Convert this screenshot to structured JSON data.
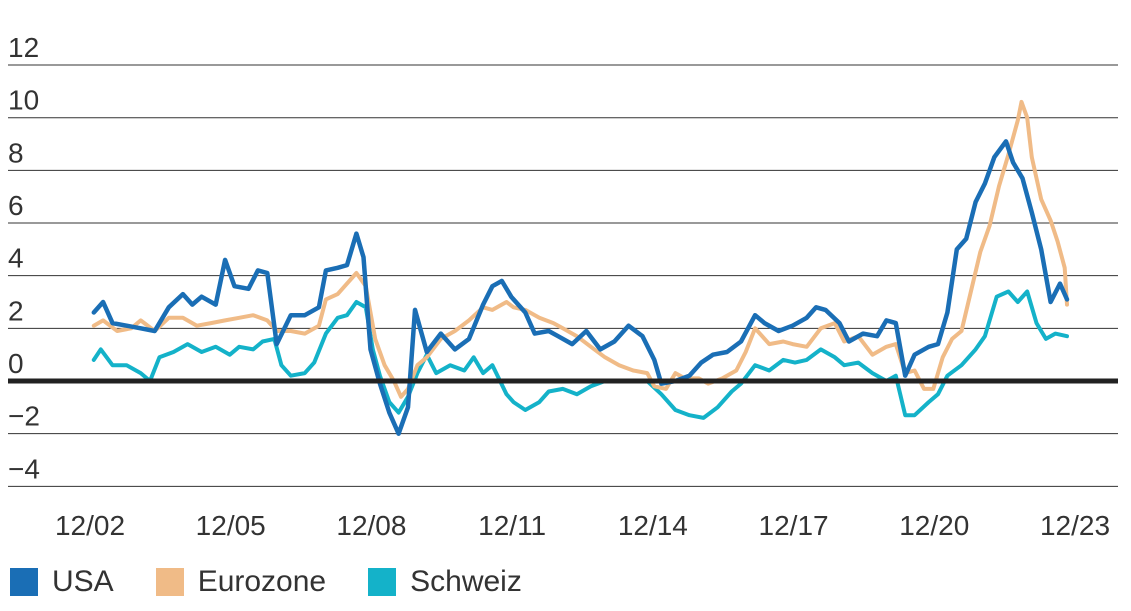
{
  "chart_data": {
    "type": "line",
    "title": "",
    "xlabel": "",
    "ylabel": "",
    "ylim": [
      -5,
      12
    ],
    "yticks": [
      12,
      10,
      8,
      6,
      4,
      2,
      0,
      -2,
      -4
    ],
    "ytick_labels": [
      "12",
      "10",
      "8",
      "6",
      "4",
      "2",
      "0",
      "−2",
      "−4"
    ],
    "xlim": [
      2002.9,
      2023.9
    ],
    "xticks": [
      2002.92,
      2005.92,
      2008.92,
      2011.92,
      2014.92,
      2017.92,
      2020.92,
      2023.92
    ],
    "xtick_labels": [
      "12/02",
      "12/05",
      "12/08",
      "12/11",
      "12/14",
      "12/17",
      "12/20",
      "12/23"
    ],
    "zero_line": true,
    "grid": "horizontal",
    "legend_position": "bottom-left",
    "series": [
      {
        "name": "USA",
        "color": "#1a6eb5",
        "points": [
          [
            2003.0,
            2.6
          ],
          [
            2003.2,
            3.0
          ],
          [
            2003.4,
            2.2
          ],
          [
            2003.7,
            2.1
          ],
          [
            2004.0,
            2.0
          ],
          [
            2004.3,
            1.9
          ],
          [
            2004.6,
            2.8
          ],
          [
            2004.9,
            3.3
          ],
          [
            2005.1,
            2.9
          ],
          [
            2005.3,
            3.2
          ],
          [
            2005.6,
            2.9
          ],
          [
            2005.8,
            4.6
          ],
          [
            2006.0,
            3.6
          ],
          [
            2006.3,
            3.5
          ],
          [
            2006.5,
            4.2
          ],
          [
            2006.7,
            4.1
          ],
          [
            2006.9,
            1.4
          ],
          [
            2007.2,
            2.5
          ],
          [
            2007.5,
            2.5
          ],
          [
            2007.8,
            2.8
          ],
          [
            2007.95,
            4.2
          ],
          [
            2008.2,
            4.3
          ],
          [
            2008.4,
            4.4
          ],
          [
            2008.6,
            5.6
          ],
          [
            2008.75,
            4.7
          ],
          [
            2008.9,
            1.2
          ],
          [
            2009.1,
            -0.1
          ],
          [
            2009.3,
            -1.2
          ],
          [
            2009.5,
            -2.0
          ],
          [
            2009.7,
            -1.0
          ],
          [
            2009.85,
            2.7
          ],
          [
            2010.1,
            1.1
          ],
          [
            2010.4,
            1.8
          ],
          [
            2010.7,
            1.2
          ],
          [
            2011.0,
            1.6
          ],
          [
            2011.3,
            2.9
          ],
          [
            2011.5,
            3.6
          ],
          [
            2011.7,
            3.8
          ],
          [
            2011.9,
            3.2
          ],
          [
            2012.2,
            2.6
          ],
          [
            2012.4,
            1.8
          ],
          [
            2012.7,
            1.9
          ],
          [
            2012.9,
            1.7
          ],
          [
            2013.2,
            1.4
          ],
          [
            2013.5,
            1.9
          ],
          [
            2013.8,
            1.2
          ],
          [
            2014.1,
            1.5
          ],
          [
            2014.4,
            2.1
          ],
          [
            2014.7,
            1.7
          ],
          [
            2014.95,
            0.8
          ],
          [
            2015.1,
            -0.1
          ],
          [
            2015.4,
            0.0
          ],
          [
            2015.7,
            0.2
          ],
          [
            2015.95,
            0.7
          ],
          [
            2016.2,
            1.0
          ],
          [
            2016.5,
            1.1
          ],
          [
            2016.8,
            1.5
          ],
          [
            2017.1,
            2.5
          ],
          [
            2017.3,
            2.2
          ],
          [
            2017.6,
            1.9
          ],
          [
            2017.9,
            2.1
          ],
          [
            2018.2,
            2.4
          ],
          [
            2018.4,
            2.8
          ],
          [
            2018.6,
            2.7
          ],
          [
            2018.9,
            2.2
          ],
          [
            2019.1,
            1.5
          ],
          [
            2019.4,
            1.8
          ],
          [
            2019.7,
            1.7
          ],
          [
            2019.9,
            2.3
          ],
          [
            2020.1,
            2.2
          ],
          [
            2020.3,
            0.2
          ],
          [
            2020.5,
            1.0
          ],
          [
            2020.8,
            1.3
          ],
          [
            2021.0,
            1.4
          ],
          [
            2021.2,
            2.6
          ],
          [
            2021.4,
            5.0
          ],
          [
            2021.6,
            5.4
          ],
          [
            2021.8,
            6.8
          ],
          [
            2022.0,
            7.5
          ],
          [
            2022.2,
            8.5
          ],
          [
            2022.45,
            9.1
          ],
          [
            2022.6,
            8.3
          ],
          [
            2022.8,
            7.7
          ],
          [
            2023.0,
            6.4
          ],
          [
            2023.2,
            5.0
          ],
          [
            2023.4,
            3.0
          ],
          [
            2023.6,
            3.7
          ],
          [
            2023.75,
            3.1
          ]
        ]
      },
      {
        "name": "Eurozone",
        "color": "#f0bb87",
        "points": [
          [
            2003.0,
            2.1
          ],
          [
            2003.2,
            2.3
          ],
          [
            2003.5,
            1.9
          ],
          [
            2003.8,
            2.0
          ],
          [
            2004.0,
            2.3
          ],
          [
            2004.3,
            1.9
          ],
          [
            2004.6,
            2.4
          ],
          [
            2004.9,
            2.4
          ],
          [
            2005.2,
            2.1
          ],
          [
            2005.5,
            2.2
          ],
          [
            2005.8,
            2.3
          ],
          [
            2006.1,
            2.4
          ],
          [
            2006.4,
            2.5
          ],
          [
            2006.7,
            2.3
          ],
          [
            2006.9,
            1.9
          ],
          [
            2007.2,
            1.9
          ],
          [
            2007.5,
            1.8
          ],
          [
            2007.8,
            2.1
          ],
          [
            2007.95,
            3.1
          ],
          [
            2008.2,
            3.3
          ],
          [
            2008.4,
            3.7
          ],
          [
            2008.6,
            4.1
          ],
          [
            2008.8,
            3.6
          ],
          [
            2009.0,
            1.6
          ],
          [
            2009.2,
            0.6
          ],
          [
            2009.4,
            0.0
          ],
          [
            2009.55,
            -0.6
          ],
          [
            2009.7,
            -0.3
          ],
          [
            2009.9,
            0.6
          ],
          [
            2010.1,
            0.9
          ],
          [
            2010.4,
            1.6
          ],
          [
            2010.7,
            1.9
          ],
          [
            2011.0,
            2.3
          ],
          [
            2011.3,
            2.8
          ],
          [
            2011.5,
            2.7
          ],
          [
            2011.8,
            3.0
          ],
          [
            2011.95,
            2.8
          ],
          [
            2012.2,
            2.7
          ],
          [
            2012.5,
            2.4
          ],
          [
            2012.8,
            2.2
          ],
          [
            2013.0,
            2.0
          ],
          [
            2013.3,
            1.7
          ],
          [
            2013.6,
            1.3
          ],
          [
            2013.9,
            0.9
          ],
          [
            2014.2,
            0.6
          ],
          [
            2014.5,
            0.4
          ],
          [
            2014.8,
            0.3
          ],
          [
            2014.95,
            -0.2
          ],
          [
            2015.2,
            -0.3
          ],
          [
            2015.4,
            0.3
          ],
          [
            2015.6,
            0.1
          ],
          [
            2015.9,
            0.1
          ],
          [
            2016.1,
            -0.1
          ],
          [
            2016.4,
            0.1
          ],
          [
            2016.7,
            0.4
          ],
          [
            2016.9,
            1.1
          ],
          [
            2017.1,
            2.0
          ],
          [
            2017.4,
            1.4
          ],
          [
            2017.7,
            1.5
          ],
          [
            2017.9,
            1.4
          ],
          [
            2018.2,
            1.3
          ],
          [
            2018.5,
            2.0
          ],
          [
            2018.8,
            2.2
          ],
          [
            2019.0,
            1.5
          ],
          [
            2019.3,
            1.7
          ],
          [
            2019.6,
            1.0
          ],
          [
            2019.9,
            1.3
          ],
          [
            2020.1,
            1.4
          ],
          [
            2020.3,
            0.3
          ],
          [
            2020.5,
            0.4
          ],
          [
            2020.7,
            -0.3
          ],
          [
            2020.9,
            -0.3
          ],
          [
            2021.1,
            0.9
          ],
          [
            2021.3,
            1.6
          ],
          [
            2021.5,
            1.9
          ],
          [
            2021.7,
            3.4
          ],
          [
            2021.9,
            4.9
          ],
          [
            2022.1,
            5.9
          ],
          [
            2022.3,
            7.4
          ],
          [
            2022.5,
            8.6
          ],
          [
            2022.7,
            9.9
          ],
          [
            2022.78,
            10.6
          ],
          [
            2022.9,
            10.0
          ],
          [
            2023.0,
            8.5
          ],
          [
            2023.2,
            6.9
          ],
          [
            2023.4,
            6.1
          ],
          [
            2023.55,
            5.3
          ],
          [
            2023.7,
            4.3
          ],
          [
            2023.75,
            2.9
          ]
        ]
      },
      {
        "name": "Schweiz",
        "color": "#14b2c9",
        "points": [
          [
            2003.0,
            0.8
          ],
          [
            2003.15,
            1.2
          ],
          [
            2003.4,
            0.6
          ],
          [
            2003.7,
            0.6
          ],
          [
            2004.0,
            0.3
          ],
          [
            2004.2,
            0.0
          ],
          [
            2004.4,
            0.9
          ],
          [
            2004.7,
            1.1
          ],
          [
            2005.0,
            1.4
          ],
          [
            2005.3,
            1.1
          ],
          [
            2005.6,
            1.3
          ],
          [
            2005.9,
            1.0
          ],
          [
            2006.1,
            1.3
          ],
          [
            2006.4,
            1.2
          ],
          [
            2006.6,
            1.5
          ],
          [
            2006.85,
            1.6
          ],
          [
            2007.0,
            0.6
          ],
          [
            2007.2,
            0.2
          ],
          [
            2007.5,
            0.3
          ],
          [
            2007.7,
            0.7
          ],
          [
            2007.95,
            1.8
          ],
          [
            2008.2,
            2.4
          ],
          [
            2008.4,
            2.5
          ],
          [
            2008.6,
            3.0
          ],
          [
            2008.8,
            2.8
          ],
          [
            2008.95,
            1.2
          ],
          [
            2009.1,
            0.2
          ],
          [
            2009.3,
            -0.8
          ],
          [
            2009.5,
            -1.2
          ],
          [
            2009.7,
            -0.6
          ],
          [
            2009.9,
            0.3
          ],
          [
            2010.1,
            1.0
          ],
          [
            2010.3,
            0.3
          ],
          [
            2010.6,
            0.6
          ],
          [
            2010.9,
            0.4
          ],
          [
            2011.1,
            0.9
          ],
          [
            2011.3,
            0.3
          ],
          [
            2011.5,
            0.6
          ],
          [
            2011.8,
            -0.5
          ],
          [
            2011.95,
            -0.8
          ],
          [
            2012.2,
            -1.1
          ],
          [
            2012.5,
            -0.8
          ],
          [
            2012.7,
            -0.4
          ],
          [
            2013.0,
            -0.3
          ],
          [
            2013.3,
            -0.5
          ],
          [
            2013.6,
            -0.2
          ],
          [
            2013.9,
            0.0
          ],
          [
            2014.2,
            0.0
          ],
          [
            2014.5,
            0.0
          ],
          [
            2014.8,
            0.0
          ],
          [
            2015.1,
            -0.5
          ],
          [
            2015.4,
            -1.1
          ],
          [
            2015.7,
            -1.3
          ],
          [
            2016.0,
            -1.4
          ],
          [
            2016.3,
            -1.0
          ],
          [
            2016.6,
            -0.4
          ],
          [
            2016.8,
            -0.1
          ],
          [
            2017.1,
            0.6
          ],
          [
            2017.4,
            0.4
          ],
          [
            2017.7,
            0.8
          ],
          [
            2017.95,
            0.7
          ],
          [
            2018.2,
            0.8
          ],
          [
            2018.5,
            1.2
          ],
          [
            2018.8,
            0.9
          ],
          [
            2019.0,
            0.6
          ],
          [
            2019.3,
            0.7
          ],
          [
            2019.6,
            0.3
          ],
          [
            2019.9,
            0.0
          ],
          [
            2020.1,
            0.2
          ],
          [
            2020.3,
            -1.3
          ],
          [
            2020.5,
            -1.3
          ],
          [
            2020.8,
            -0.8
          ],
          [
            2021.0,
            -0.5
          ],
          [
            2021.2,
            0.2
          ],
          [
            2021.5,
            0.6
          ],
          [
            2021.8,
            1.2
          ],
          [
            2022.0,
            1.7
          ],
          [
            2022.25,
            3.2
          ],
          [
            2022.5,
            3.4
          ],
          [
            2022.7,
            3.0
          ],
          [
            2022.9,
            3.4
          ],
          [
            2023.1,
            2.2
          ],
          [
            2023.3,
            1.6
          ],
          [
            2023.5,
            1.8
          ],
          [
            2023.75,
            1.7
          ]
        ]
      }
    ]
  }
}
